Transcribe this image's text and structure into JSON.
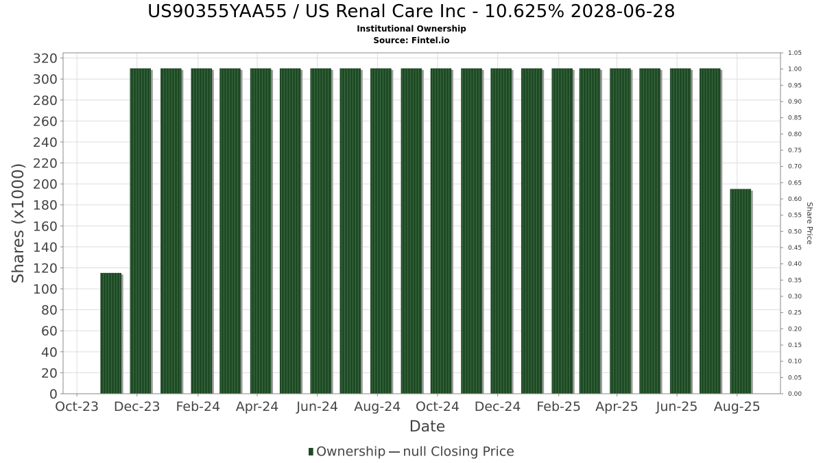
{
  "title": "US90355YAA55 / US Renal Care Inc - 10.625% 2028-06-28",
  "subtitle1": "Institutional Ownership",
  "subtitle2": "Source: Fintel.io",
  "legend": {
    "ownership": "Ownership",
    "price": "null Closing Price"
  },
  "colors": {
    "bar": "#1e4a25",
    "bar_stripe": "#3a6b40",
    "bar_shadow": "#9a9a9a",
    "grid": "#dddddd",
    "axis": "#888888"
  },
  "chart_data": {
    "type": "bar",
    "title": "US90355YAA55 / US Renal Care Inc - 10.625% 2028-06-28",
    "xlabel": "Date",
    "ylabel": "Shares (x1000)",
    "y2label": "Share Price",
    "ylim": [
      0,
      325
    ],
    "y2lim": [
      0,
      1.05
    ],
    "yticks": [
      "0",
      "20",
      "40",
      "60",
      "80",
      "100",
      "120",
      "140",
      "160",
      "180",
      "200",
      "220",
      "240",
      "260",
      "280",
      "300",
      "320"
    ],
    "y2ticks": [
      "0.00",
      "0.05",
      "0.10",
      "0.15",
      "0.20",
      "0.25",
      "0.30",
      "0.35",
      "0.40",
      "0.45",
      "0.50",
      "0.55",
      "0.60",
      "0.65",
      "0.70",
      "0.75",
      "0.80",
      "0.85",
      "0.90",
      "0.95",
      "1.00",
      "1.05"
    ],
    "xticks": [
      "Oct-23",
      "Dec-23",
      "Feb-24",
      "Apr-24",
      "Jun-24",
      "Aug-24",
      "Oct-24",
      "Dec-24",
      "Feb-25",
      "Apr-25",
      "Jun-25",
      "Aug-25"
    ],
    "grid": true,
    "legend_position": "bottom",
    "series": [
      {
        "name": "Ownership",
        "x": [
          "2023-11-01",
          "2023-12-01",
          "2024-01-01",
          "2024-02-01",
          "2024-03-01",
          "2024-04-01",
          "2024-05-01",
          "2024-06-01",
          "2024-07-01",
          "2024-08-01",
          "2024-09-01",
          "2024-10-01",
          "2024-11-01",
          "2024-12-01",
          "2025-01-01",
          "2025-02-01",
          "2025-03-01",
          "2025-04-01",
          "2025-05-01",
          "2025-06-01",
          "2025-07-01",
          "2025-08-01"
        ],
        "values": [
          115,
          310,
          310,
          310,
          310,
          310,
          310,
          310,
          310,
          310,
          310,
          310,
          310,
          310,
          310,
          310,
          310,
          310,
          310,
          310,
          310,
          195
        ]
      }
    ]
  }
}
